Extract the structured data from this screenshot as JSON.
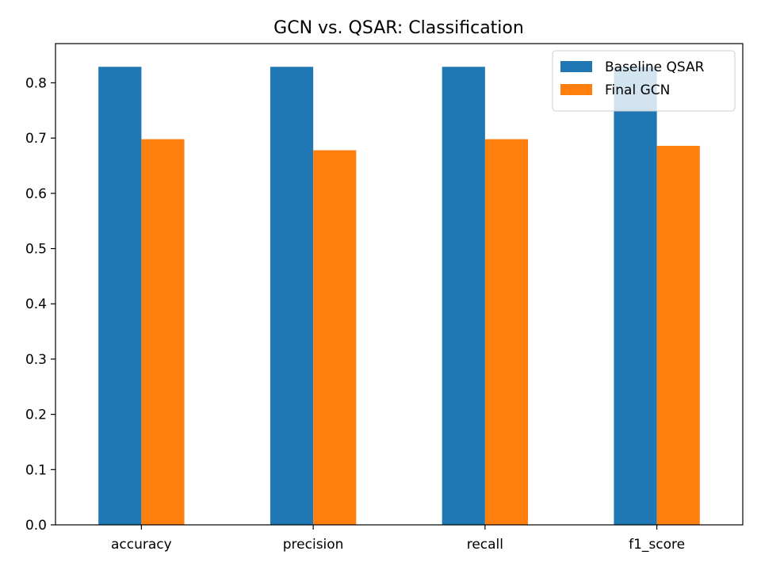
{
  "chart_data": {
    "type": "bar",
    "title": "GCN vs. QSAR: Classification",
    "xlabel": "",
    "ylabel": "",
    "categories": [
      "accuracy",
      "precision",
      "recall",
      "f1_score"
    ],
    "series": [
      {
        "name": "Baseline QSAR",
        "color": "#1f77b4",
        "values": [
          0.829,
          0.829,
          0.829,
          0.829
        ]
      },
      {
        "name": "Final GCN",
        "color": "#ff7f0e",
        "values": [
          0.698,
          0.678,
          0.698,
          0.686
        ]
      }
    ],
    "ylim": [
      0,
      0.871
    ],
    "yticks": [
      "0.0",
      "0.1",
      "0.2",
      "0.3",
      "0.4",
      "0.5",
      "0.6",
      "0.7",
      "0.8"
    ],
    "grid": false,
    "legend_position": "top-right"
  }
}
